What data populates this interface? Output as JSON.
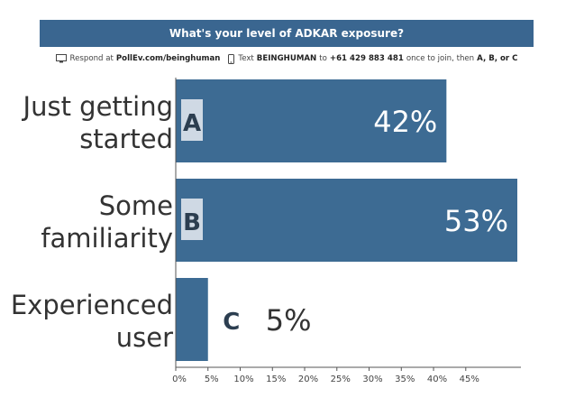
{
  "header": {
    "title": "What's your level of ADKAR exposure?",
    "respond_prefix": "Respond at",
    "respond_url": "PollEv.com/beinghuman",
    "text_prefix": "Text",
    "text_keyword": "BEINGHUMAN",
    "text_to": "to",
    "text_number": "+61 429 883 481",
    "text_suffix": "once to join, then",
    "text_options": "A, B, or C"
  },
  "colors": {
    "bar": "#3d6b93",
    "title_bar": "#3a6690"
  },
  "chart_data": {
    "type": "bar",
    "orientation": "horizontal",
    "title": "What's your level of ADKAR exposure?",
    "categories": [
      [
        "Just getting",
        "started"
      ],
      [
        "Some",
        "familiarity"
      ],
      [
        "Experienced",
        "user"
      ]
    ],
    "letters": [
      "A",
      "B",
      "C"
    ],
    "values": [
      42,
      53,
      5
    ],
    "value_labels": [
      "42%",
      "53%",
      "5%"
    ],
    "xlim": [
      0,
      53
    ],
    "xticks": [
      "0%",
      "5%",
      "10%",
      "15%",
      "20%",
      "25%",
      "30%",
      "35%",
      "40%",
      "45%"
    ],
    "xlabel": "",
    "ylabel": "",
    "grid": false
  }
}
